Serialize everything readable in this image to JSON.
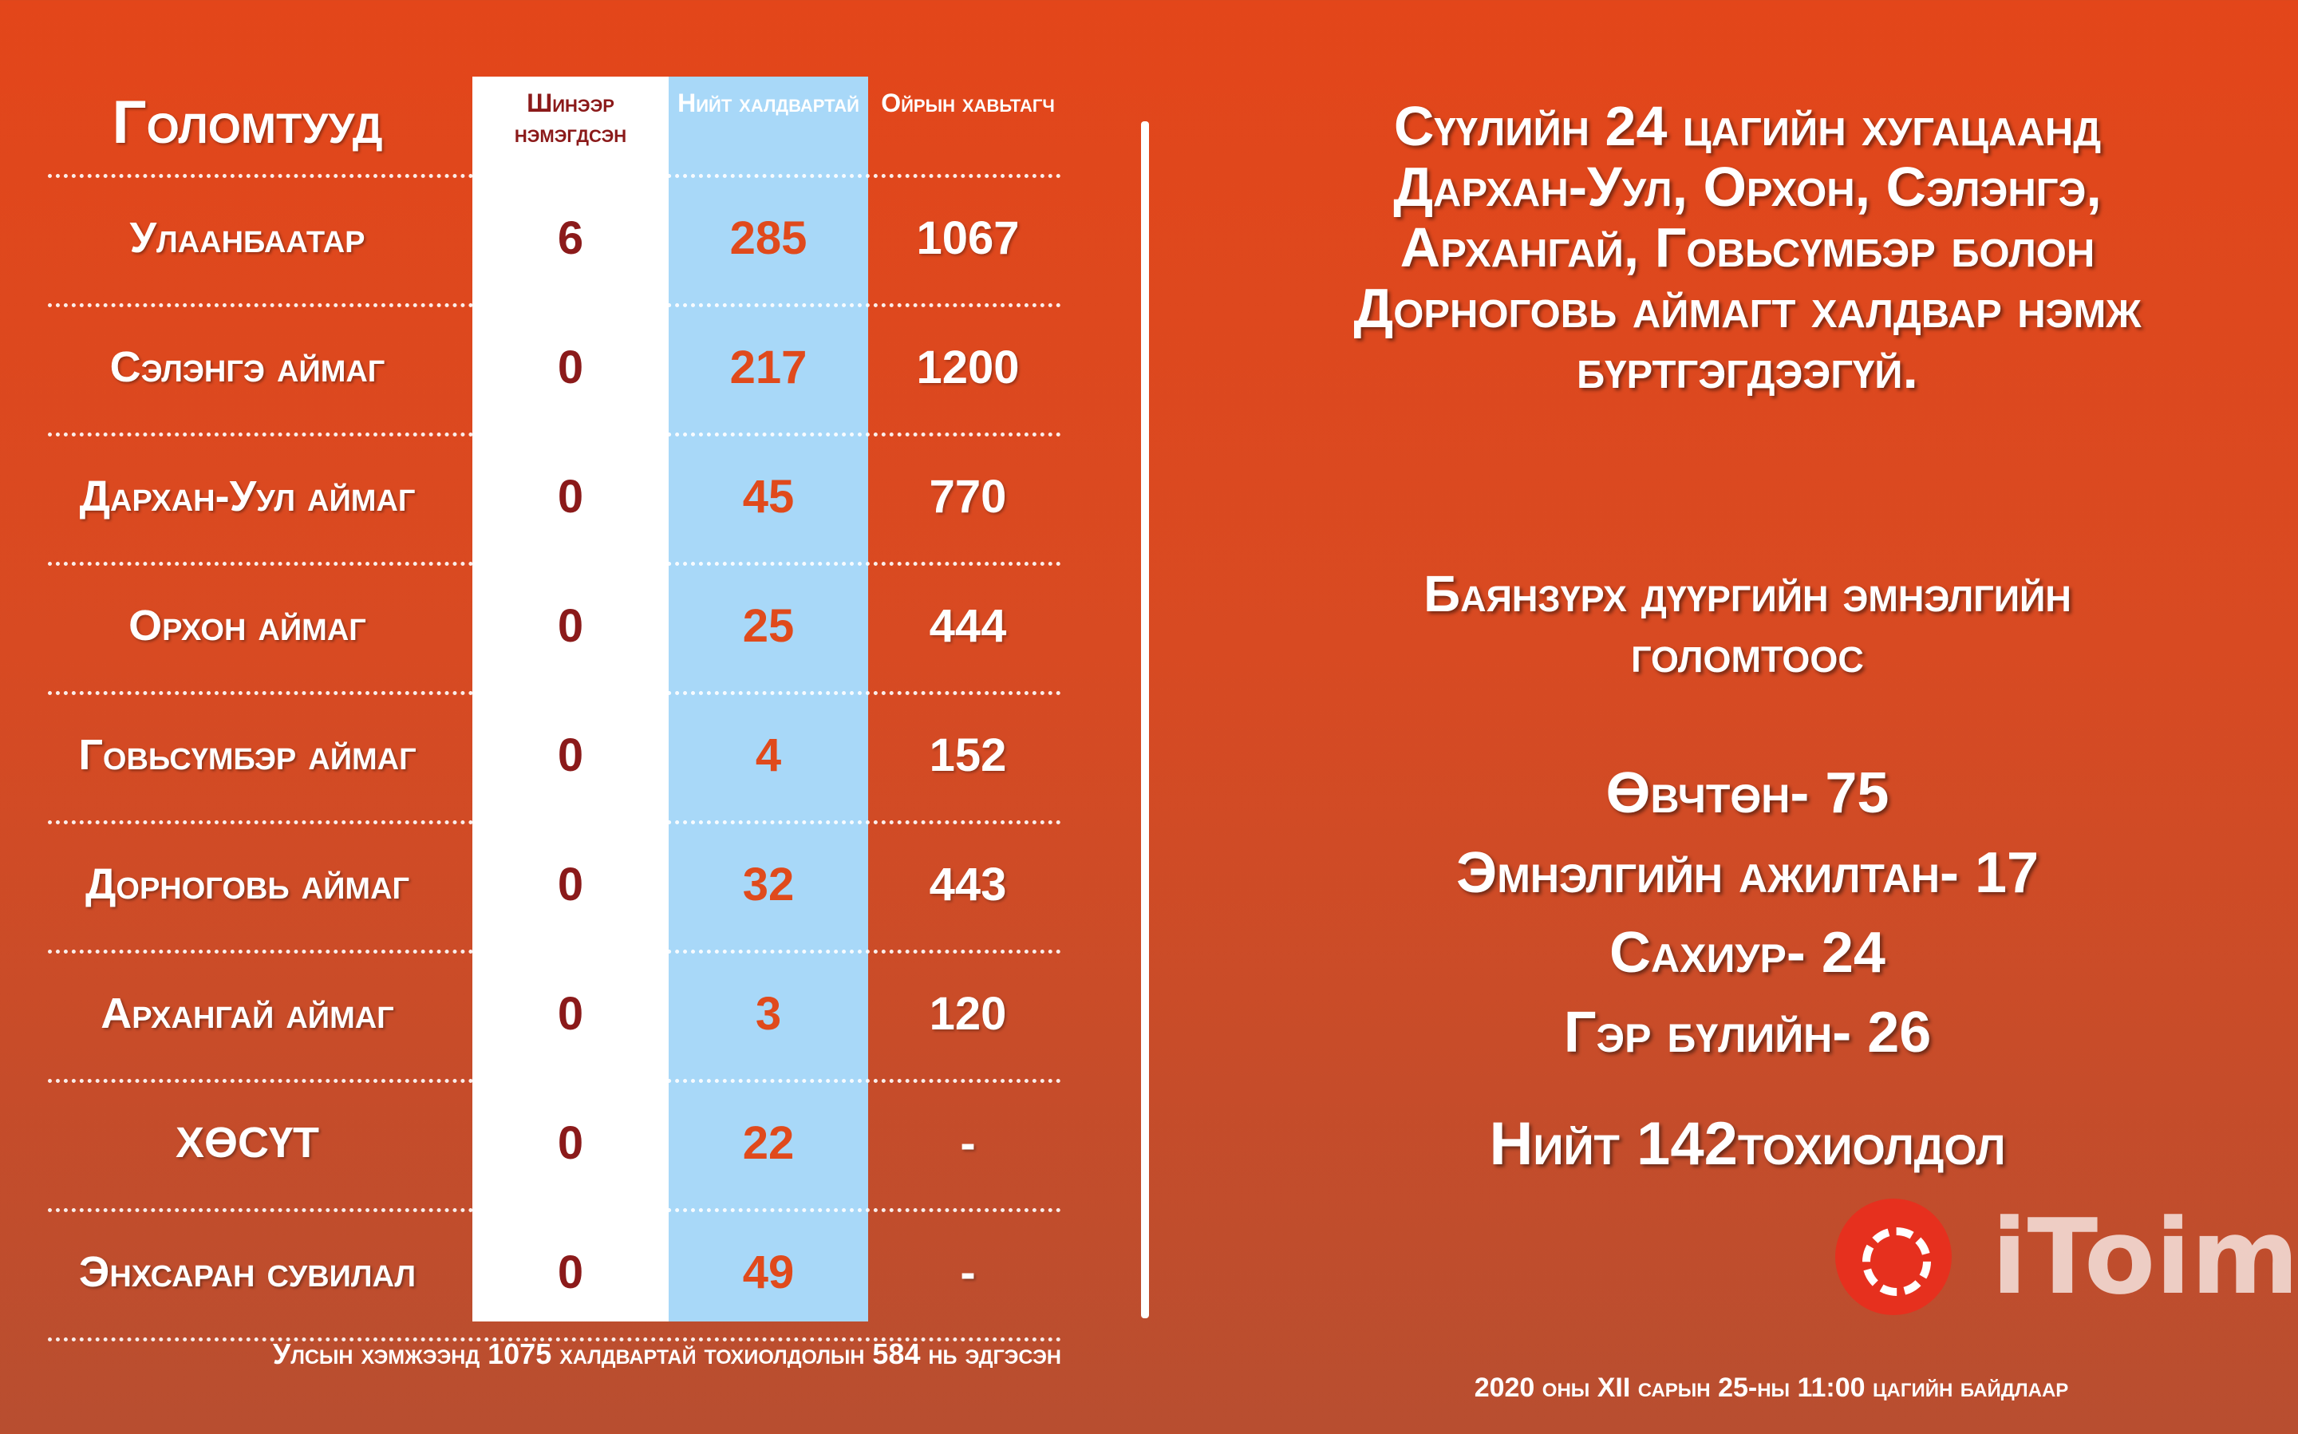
{
  "table": {
    "title": "Голомтууд",
    "col_new": "Шинээр нэмэгдсэн",
    "col_total": "Нийт халдвартай",
    "col_contact": "Ойрын хавьтагч",
    "rows": [
      {
        "name": "Улаанбаатар",
        "new": "6",
        "total": "285",
        "contact": "1067"
      },
      {
        "name": "Сэлэнгэ аймаг",
        "new": "0",
        "total": "217",
        "contact": "1200"
      },
      {
        "name": "Дархан-Уул аймаг",
        "new": "0",
        "total": "45",
        "contact": "770"
      },
      {
        "name": "Орхон аймаг",
        "new": "0",
        "total": "25",
        "contact": "444"
      },
      {
        "name": "Говьсүмбэр аймаг",
        "new": "0",
        "total": "4",
        "contact": "152"
      },
      {
        "name": "Дорноговь аймаг",
        "new": "0",
        "total": "32",
        "contact": "443"
      },
      {
        "name": "Архангай аймаг",
        "new": "0",
        "total": "3",
        "contact": "120"
      },
      {
        "name": "ХӨСҮТ",
        "new": "0",
        "total": "22",
        "contact": "-"
      },
      {
        "name": "Энхсаран сувилал",
        "new": "0",
        "total": "49",
        "contact": "-"
      }
    ],
    "footnote": "Улсын хэмжээнд 1075 халдвартай тохиолдолын 584 нь эдгэсэн"
  },
  "right": {
    "note_lines": [
      "Сүүлийн 24 цагийн хугацаанд",
      "Дархан-Уул, Орхон, Сэлэнгэ,",
      "Архангай, Говьсүмбэр болон",
      "Дорноговь аймагт халдвар нэмж",
      "бүртгэгдээгүй."
    ],
    "sub_lines": [
      "Баянзүрх дүүргийн эмнэлгийн",
      "голомтоос"
    ],
    "stats": [
      "Өвчтөн- 75",
      "Эмнэлгийн ажилтан- 17",
      "Сахиур- 24",
      "Гэр бүлийн- 26"
    ],
    "total": "Нийт 142тохиолдол",
    "date": "2020 оны XII сарын 25-ны 11:00 цагийн байдлаар"
  },
  "logo": {
    "text": "iToim",
    "icon": "itoim-logo-icon"
  }
}
